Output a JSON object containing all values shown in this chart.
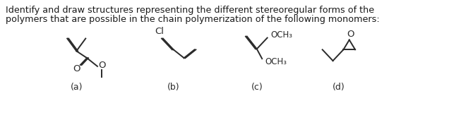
{
  "title_line1": "Identify and draw structures representing the different stereoregular forms of the",
  "title_line2": "polymers that are possible in the chain polymerization of the following monomers:",
  "labels": [
    "(a)",
    "(b)",
    "(c)",
    "(d)"
  ],
  "background_color": "#ffffff",
  "text_color": "#1a1a1a",
  "font_size_text": 9.2,
  "font_size_label": 9.0,
  "font_size_chem": 8.5,
  "lw": 1.4,
  "color": "#2a2a2a"
}
